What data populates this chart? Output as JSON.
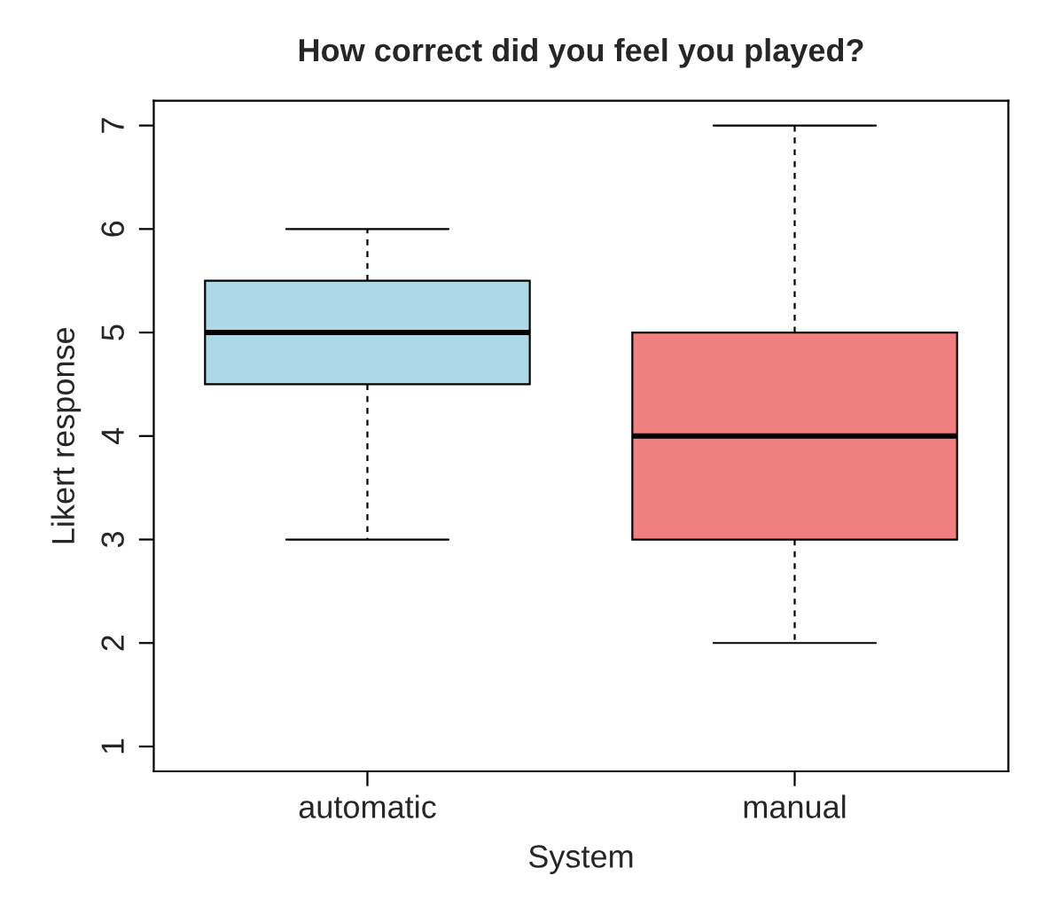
{
  "chart_data": {
    "type": "box",
    "title": "How correct did you feel you played?",
    "xlabel": "System",
    "ylabel": "Likert response",
    "categories": [
      "automatic",
      "manual"
    ],
    "boxes": [
      {
        "low": 3,
        "q1": 4.5,
        "median": 5,
        "q3": 5.5,
        "high": 6
      },
      {
        "low": 2,
        "q1": 3,
        "median": 4,
        "q3": 5,
        "high": 7
      }
    ],
    "colors": [
      "#add8e6",
      "#f08080"
    ],
    "ylim": [
      0.76,
      7.24
    ],
    "yticks": [
      1,
      2,
      3,
      4,
      5,
      6,
      7
    ],
    "grid": false
  }
}
